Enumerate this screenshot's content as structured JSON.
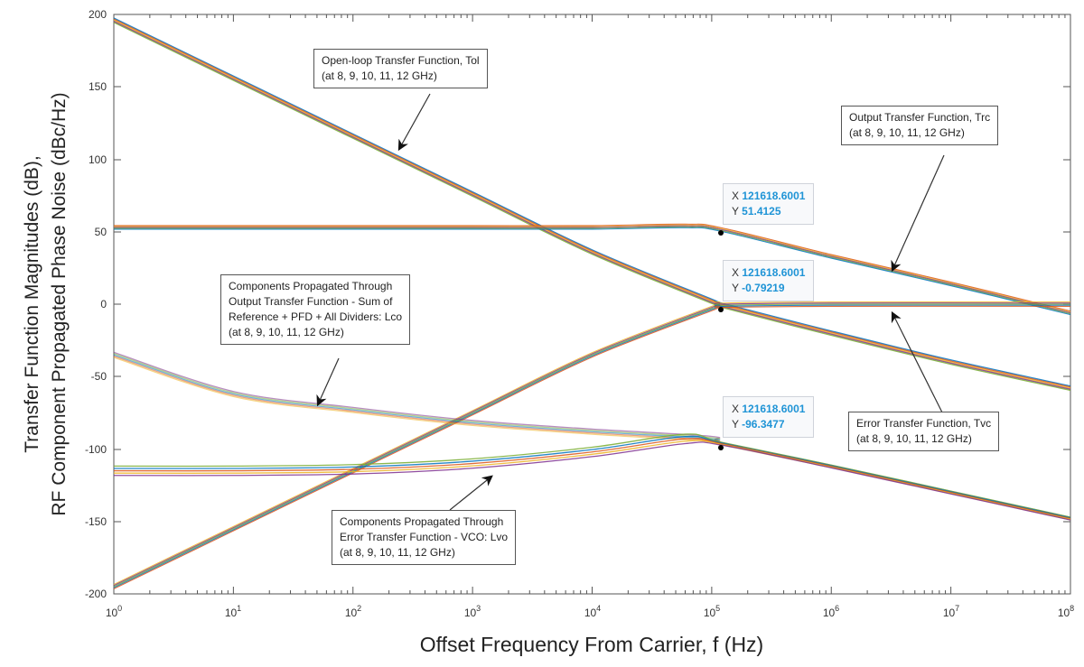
{
  "chart_data": {
    "type": "line",
    "title": "",
    "xlabel": "Offset Frequency From Carrier, f (Hz)",
    "ylabel_line1": "Transfer Function Magnitudes (dB),",
    "ylabel_line2": "RF Component Propagated Phase Noise (dBc/Hz)",
    "xscale": "log",
    "xlim": [
      1,
      100000000
    ],
    "ylim": [
      -200,
      200
    ],
    "x_ticks": [
      "10^0",
      "10^1",
      "10^2",
      "10^3",
      "10^4",
      "10^5",
      "10^6",
      "10^7",
      "10^8"
    ],
    "y_ticks": [
      200,
      150,
      100,
      50,
      0,
      -50,
      -100,
      -150,
      -200
    ],
    "grid": false,
    "legend": "none (inline annotations)",
    "series_frequencies_GHz": [
      8,
      9,
      10,
      11,
      12
    ],
    "series": [
      {
        "name": "Open-loop Transfer Function, Tol",
        "x": [
          1,
          10,
          100,
          1000,
          10000,
          100000,
          121618.6,
          1000000,
          10000000,
          100000000
        ],
        "values": [
          196,
          156,
          116,
          76,
          36,
          2,
          -0.79,
          -20,
          -40,
          -58
        ]
      },
      {
        "name": "Output Transfer Function, Trc",
        "x": [
          1,
          10,
          100,
          1000,
          10000,
          60000,
          121618.6,
          1000000,
          10000000,
          100000000
        ],
        "values": [
          53,
          53,
          53,
          53,
          53,
          54,
          51.41,
          33,
          14,
          -6
        ]
      },
      {
        "name": "Error Transfer Function, Tvc",
        "x": [
          1,
          10,
          100,
          1000,
          10000,
          100000,
          121618.6,
          1000000,
          100000000
        ],
        "values": [
          -195,
          -155,
          -115,
          -75,
          -35,
          -3,
          -0.79,
          0,
          0
        ]
      },
      {
        "name": "Components Propagated Through Output Transfer Function - Sum of Reference + PFD + All Dividers: Lco",
        "x": [
          1,
          10,
          100,
          1000,
          10000,
          100000,
          121618.6,
          1000000,
          10000000,
          100000000
        ],
        "values": [
          -35,
          -62,
          -73,
          -82,
          -88,
          -93,
          -96.35,
          -112,
          -130,
          -148
        ]
      },
      {
        "name": "Components Propagated Through Error Transfer Function - VCO: Lvo",
        "x": [
          1,
          10,
          100,
          1000,
          10000,
          60000,
          121618.6,
          1000000,
          10000000,
          100000000
        ],
        "values": [
          -115,
          -115,
          -114,
          -110,
          -102,
          -93,
          -96.35,
          -112,
          -130,
          -148
        ]
      }
    ],
    "annotations": [
      {
        "text": "Open-loop Transfer Function, Tol (at 8, 9, 10, 11, 12 GHz)"
      },
      {
        "text": "Output Transfer Function, Trc (at 8, 9, 10, 11, 12 GHz)"
      },
      {
        "text": "Components Propagated Through Output Transfer Function - Sum of Reference + PFD + All Dividers: Lco (at 8, 9, 10, 11, 12 GHz)"
      },
      {
        "text": "Error Transfer Function, Tvc (at 8, 9, 10, 11, 12 GHz)"
      },
      {
        "text": "Components Propagated Through Error Transfer Function - VCO: Lvo (at 8, 9, 10, 11, 12 GHz)"
      }
    ],
    "datatips": [
      {
        "x": "121618.6001",
        "y": "51.4125"
      },
      {
        "x": "121618.6001",
        "y": "-0.79219"
      },
      {
        "x": "121618.6001",
        "y": "-96.3477"
      }
    ]
  },
  "labels": {
    "tol_line1": "Open-loop Transfer Function, Tol",
    "tol_line2": "(at 8, 9, 10, 11, 12 GHz)",
    "trc_line1": "Output Transfer Function, Trc",
    "trc_line2": "(at 8, 9, 10, 11, 12 GHz)",
    "lco_line1": "Components Propagated Through",
    "lco_line2": "Output Transfer Function - Sum of",
    "lco_line3": "Reference + PFD + All Dividers: Lco",
    "lco_line4": "(at 8, 9, 10, 11, 12 GHz)",
    "tvc_line1": "Error Transfer Function, Tvc",
    "tvc_line2": "(at 8, 9, 10, 11, 12 GHz)",
    "lvo_line1": "Components Propagated Through",
    "lvo_line2": "Error Transfer Function - VCO: Lvo",
    "lvo_line3": "(at 8, 9, 10, 11, 12 GHz)"
  },
  "datatips": {
    "x_key": "X",
    "y_key": "Y",
    "tip1": {
      "x": "121618.6001",
      "y": "51.4125"
    },
    "tip2": {
      "x": "121618.6001",
      "y": "-0.79219"
    },
    "tip3": {
      "x": "121618.6001",
      "y": "-96.3477"
    }
  },
  "axes": {
    "y_ticks": [
      "200",
      "150",
      "100",
      "50",
      "0",
      "-50",
      "-100",
      "-150",
      "-200"
    ],
    "x_tick_base": "10",
    "x_tick_exps": [
      "0",
      "1",
      "2",
      "3",
      "4",
      "5",
      "6",
      "7",
      "8"
    ]
  },
  "colors": {
    "series_palette": [
      "#0072bd",
      "#d95319",
      "#edb120",
      "#7e2f8e",
      "#77ac30"
    ],
    "tol_band": "#c8a27c",
    "lco_band": "#6e7f99",
    "axis": "#555555",
    "datatip_value": "#1f94d6"
  }
}
